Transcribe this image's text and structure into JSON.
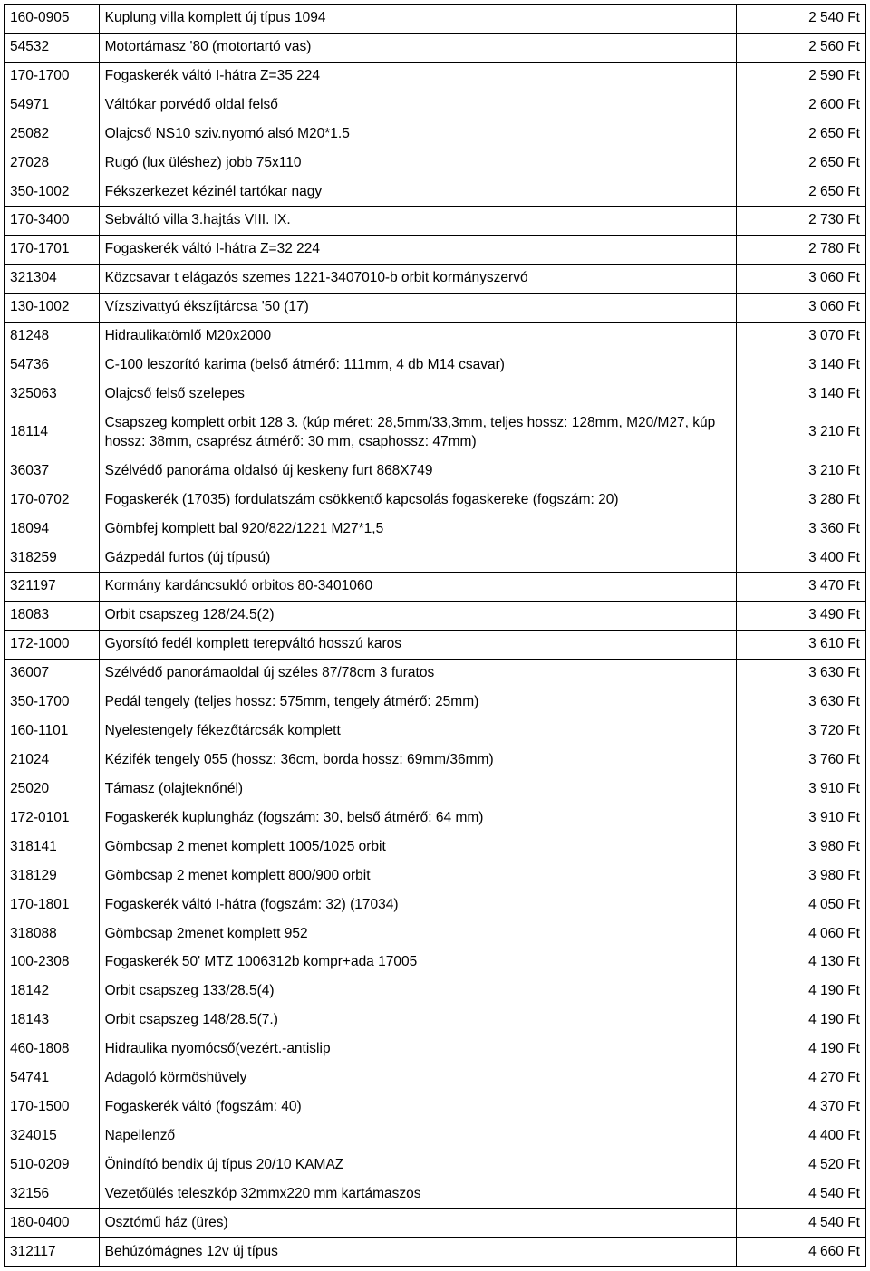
{
  "table": {
    "rows": [
      {
        "code": "160-0905",
        "desc": "Kuplung villa komplett új típus 1094",
        "price": "2 540 Ft"
      },
      {
        "code": "54532",
        "desc": "Motortámasz '80 (motortartó vas)",
        "price": "2 560 Ft"
      },
      {
        "code": "170-1700",
        "desc": "Fogaskerék váltó I-hátra Z=35 224",
        "price": "2 590 Ft"
      },
      {
        "code": "54971",
        "desc": "Váltókar porvédő oldal felső",
        "price": "2 600 Ft"
      },
      {
        "code": "25082",
        "desc": "Olajcső NS10 sziv.nyomó alsó M20*1.5",
        "price": "2 650 Ft"
      },
      {
        "code": "27028",
        "desc": "Rugó (lux üléshez) jobb 75x110",
        "price": "2 650 Ft"
      },
      {
        "code": "350-1002",
        "desc": "Fékszerkezet kézinél tartókar nagy",
        "price": "2 650 Ft"
      },
      {
        "code": "170-3400",
        "desc": "Sebváltó villa 3.hajtás  VIII. IX.",
        "price": "2 730 Ft"
      },
      {
        "code": "170-1701",
        "desc": "Fogaskerék váltó I-hátra Z=32 224",
        "price": "2 780 Ft"
      },
      {
        "code": "321304",
        "desc": "Közcsavar t elágazós szemes 1221-3407010-b orbit kormányszervó",
        "price": "3 060 Ft"
      },
      {
        "code": "130-1002",
        "desc": "Vízszivattyú ékszíjtárcsa '50 (17)",
        "price": "3 060 Ft"
      },
      {
        "code": "81248",
        "desc": "Hidraulikatömlő M20x2000",
        "price": "3 070 Ft"
      },
      {
        "code": "54736",
        "desc": "C-100 leszorító karima (belső átmérő: 111mm, 4 db M14 csavar)",
        "price": "3 140 Ft"
      },
      {
        "code": "325063",
        "desc": "Olajcső felső szelepes",
        "price": "3 140 Ft"
      },
      {
        "code": "18114",
        "desc": "Csapszeg komplett orbit 128 3. (kúp méret: 28,5mm/33,3mm, teljes hossz: 128mm, M20/M27, kúp hossz: 38mm, csaprész átmérő: 30 mm, csaphossz: 47mm)",
        "price": "3 210 Ft"
      },
      {
        "code": "36037",
        "desc": "Szélvédő panoráma oldalsó új keskeny furt 868X749",
        "price": "3 210 Ft"
      },
      {
        "code": "170-0702",
        "desc": "Fogaskerék  (17035) fordulatszám csökkentő kapcsolás fogaskereke (fogszám: 20)",
        "price": "3 280 Ft"
      },
      {
        "code": "18094",
        "desc": "Gömbfej komplett bal 920/822/1221 M27*1,5",
        "price": "3 360 Ft"
      },
      {
        "code": "318259",
        "desc": "Gázpedál furtos (új típusú)",
        "price": "3 400 Ft"
      },
      {
        "code": "321197",
        "desc": "Kormány kardáncsukló orbitos 80-3401060",
        "price": "3 470 Ft"
      },
      {
        "code": "18083",
        "desc": "Orbit csapszeg 128/24.5(2)",
        "price": "3 490 Ft"
      },
      {
        "code": "172-1000",
        "desc": "Gyorsító fedél komplett terepváltó hosszú karos",
        "price": "3 610 Ft"
      },
      {
        "code": "36007",
        "desc": "Szélvédő panorámaoldal új széles 87/78cm 3 furatos",
        "price": "3 630 Ft"
      },
      {
        "code": "350-1700",
        "desc": "Pedál tengely  (teljes hossz: 575mm, tengely átmérő: 25mm)",
        "price": "3 630 Ft"
      },
      {
        "code": "160-1101",
        "desc": "Nyelestengely fékezőtárcsák komplett",
        "price": "3 720 Ft"
      },
      {
        "code": "21024",
        "desc": "Kézifék tengely 055 (hossz: 36cm, borda hossz: 69mm/36mm)",
        "price": "3 760 Ft"
      },
      {
        "code": "25020",
        "desc": "Támasz (olajteknőnél)",
        "price": "3 910 Ft"
      },
      {
        "code": "172-0101",
        "desc": "Fogaskerék kuplungház  (fogszám: 30, belső átmérő: 64 mm)",
        "price": "3 910 Ft"
      },
      {
        "code": "318141",
        "desc": "Gömbcsap 2 menet komplett 1005/1025 orbit",
        "price": "3 980 Ft"
      },
      {
        "code": "318129",
        "desc": "Gömbcsap 2 menet komplett 800/900 orbit",
        "price": "3 980 Ft"
      },
      {
        "code": "170-1801",
        "desc": "Fogaskerék váltó I-hátra  (fogszám: 32) (17034)",
        "price": "4 050 Ft"
      },
      {
        "code": "318088",
        "desc": "Gömbcsap 2menet komplett 952",
        "price": "4 060 Ft"
      },
      {
        "code": "100-2308",
        "desc": "Fogaskerék 50' MTZ 1006312b kompr+ada 17005",
        "price": "4 130 Ft"
      },
      {
        "code": "18142",
        "desc": "Orbit csapszeg 133/28.5(4)",
        "price": "4 190 Ft"
      },
      {
        "code": "18143",
        "desc": "Orbit csapszeg 148/28.5(7.)",
        "price": "4 190 Ft"
      },
      {
        "code": "460-1808",
        "desc": "Hidraulika nyomócső(vezért.-antislip",
        "price": "4 190 Ft"
      },
      {
        "code": "54741",
        "desc": "Adagoló körmöshüvely",
        "price": "4 270 Ft"
      },
      {
        "code": "170-1500",
        "desc": "Fogaskerék váltó  (fogszám: 40)",
        "price": "4 370 Ft"
      },
      {
        "code": "324015",
        "desc": "Napellenző",
        "price": "4 400 Ft"
      },
      {
        "code": "510-0209",
        "desc": "Önindító bendix új típus 20/10 KAMAZ",
        "price": "4 520 Ft"
      },
      {
        "code": "32156",
        "desc": "Vezetőülés teleszkóp 32mmx220 mm kartámaszos",
        "price": "4 540 Ft"
      },
      {
        "code": "180-0400",
        "desc": "Osztómű ház (üres)",
        "price": "4 540 Ft"
      },
      {
        "code": "312117",
        "desc": "Behúzómágnes 12v új típus",
        "price": "4 660 Ft"
      }
    ]
  }
}
